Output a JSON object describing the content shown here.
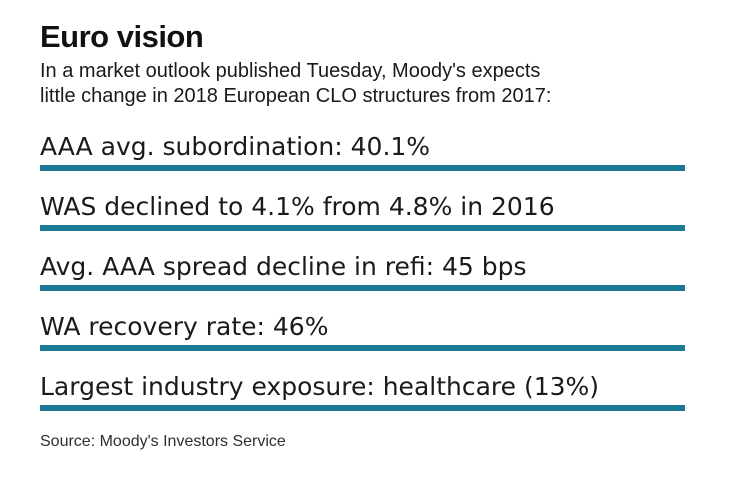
{
  "chart_data": {
    "type": "table",
    "title": "Euro vision",
    "subtitle_lines": [
      "In a market outlook published Tuesday, Moody's expects",
      "little change in 2018 European CLO structures from 2017:"
    ],
    "rows": [
      {
        "metric": "AAA avg. subordination",
        "value": "40.1%",
        "display": "AAA avg. subordination: 40.1%"
      },
      {
        "metric": "WAS",
        "value": "declined to 4.1% from 4.8% in 2016",
        "display": "WAS declined to 4.1% from 4.8% in 2016"
      },
      {
        "metric": "Avg. AAA spread decline in refi",
        "value": "45 bps",
        "display": "Avg. AAA spread decline in refi: 45 bps"
      },
      {
        "metric": "WA recovery rate",
        "value": "46%",
        "display": "WA recovery rate: 46%"
      },
      {
        "metric": "Largest industry exposure",
        "value": "healthcare (13%)",
        "display": "Largest industry exposure: healthcare (13%)"
      }
    ],
    "source": "Source: Moody's Investors Service",
    "accent_color": "#1b7a96",
    "text_color": "#1a1a1a",
    "background_color": "#ffffff",
    "grid": false,
    "legend_position": "none"
  }
}
